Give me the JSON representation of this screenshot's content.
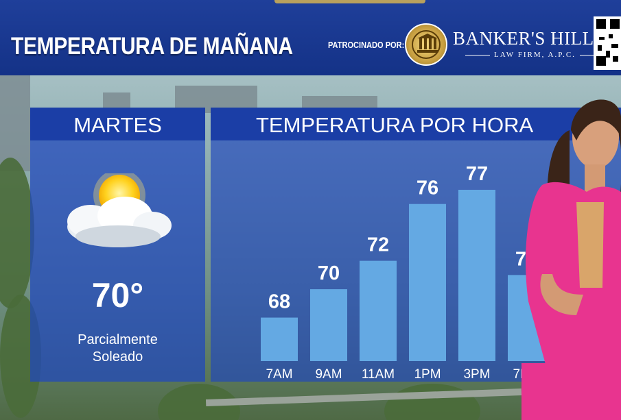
{
  "header": {
    "title": "TEMPERATURA DE MAÑANA",
    "sponsor_label": "PATROCINADO POR:",
    "sponsor_name": "BANKER'S HILL",
    "sponsor_sub": "LAW FIRM, A.P.C."
  },
  "forecast": {
    "day": "MARTES",
    "icon": "partly-sunny-icon",
    "temperature": "70°",
    "condition": "Parcialmente\nSoleado"
  },
  "chart_data": {
    "type": "bar",
    "title": "TEMPERATURA POR HORA",
    "categories": [
      "7AM",
      "9AM",
      "11AM",
      "1PM",
      "3PM",
      "7PM"
    ],
    "values": [
      68,
      70,
      72,
      76,
      77,
      71
    ],
    "value_labels": [
      "68",
      "70",
      "72",
      "76",
      "77",
      "71"
    ],
    "xlabel": "",
    "ylabel": "",
    "grid": false,
    "bar_color": "#64a9e3"
  },
  "colors": {
    "header_bg": "#143287",
    "panel_head": "#1b3ea6",
    "presenter_outfit": "#e8348f"
  }
}
